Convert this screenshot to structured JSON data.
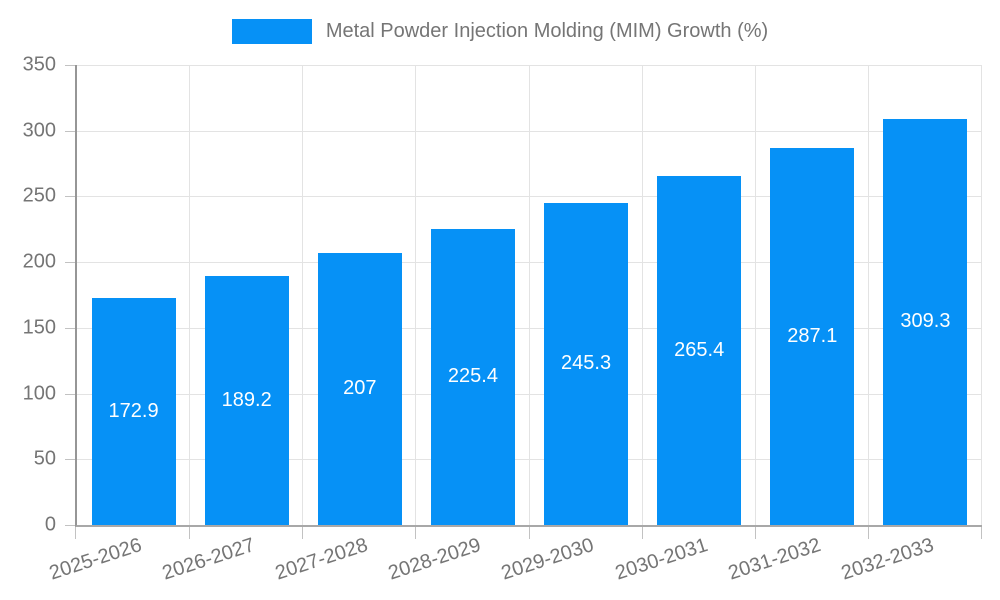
{
  "chart_data": {
    "type": "bar",
    "title": "Metal Powder Injection Molding (MIM) Growth (%)",
    "categories": [
      "2025-2026",
      "2026-2027",
      "2027-2028",
      "2028-2029",
      "2029-2030",
      "2030-2031",
      "2031-2032",
      "2032-2033"
    ],
    "values": [
      172.9,
      189.2,
      207,
      225.4,
      245.3,
      265.4,
      287.1,
      309.3
    ],
    "xlabel": "",
    "ylabel": "",
    "ylim": [
      0,
      350
    ],
    "ytick_step": 50,
    "ytick_labels": [
      "0",
      "50",
      "100",
      "150",
      "200",
      "250",
      "300",
      "350"
    ],
    "grid": "on",
    "legend_position": "top-center",
    "value_labels": "inside-center-white",
    "colors": {
      "bar": "#0691f6",
      "bar_value_text": "#ffffff",
      "tick_text": "#757575",
      "legend_text": "#757575",
      "gridline": "#e3e3e3",
      "axis_line": "#9b9b9b",
      "background": "#ffffff"
    }
  }
}
